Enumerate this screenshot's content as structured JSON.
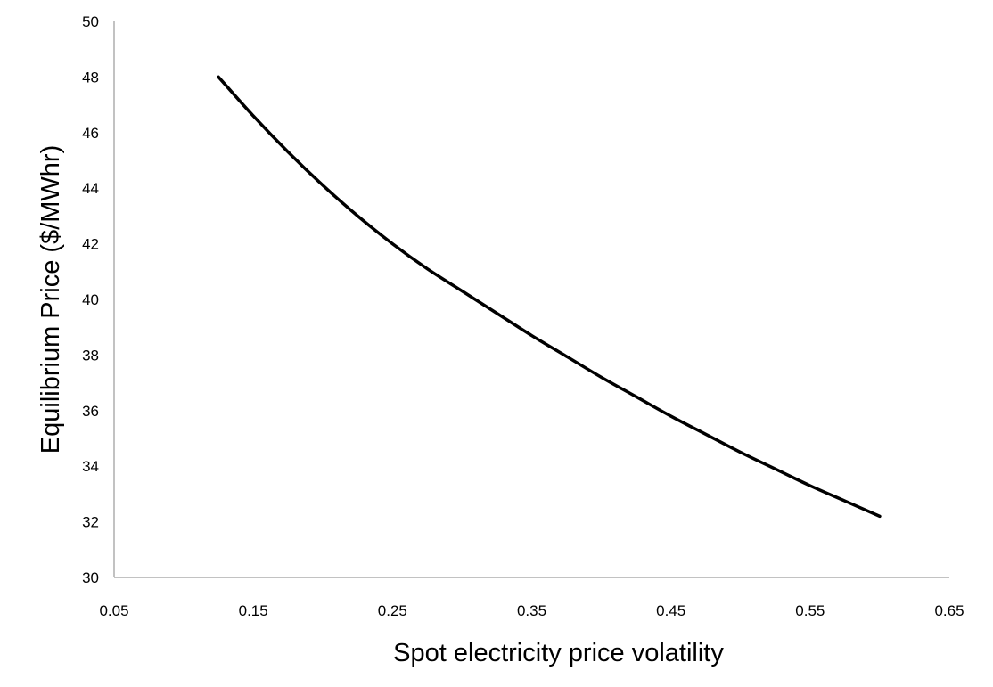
{
  "chart_data": {
    "type": "line",
    "title": "",
    "xlabel": "Spot electricity price volatility",
    "ylabel": "Equilibrium Price ($/MWhr)",
    "xlim": [
      0.05,
      0.65
    ],
    "ylim": [
      30,
      50
    ],
    "x_ticks": [
      "0.05",
      "0.15",
      "0.25",
      "0.35",
      "0.45",
      "0.55",
      "0.65"
    ],
    "y_ticks": [
      "30",
      "32",
      "34",
      "36",
      "38",
      "40",
      "42",
      "44",
      "46",
      "48",
      "50"
    ],
    "grid": false,
    "legend": "none",
    "series": [
      {
        "color": "#000000",
        "x": [
          0.125,
          0.15,
          0.175,
          0.2,
          0.225,
          0.25,
          0.275,
          0.3,
          0.325,
          0.35,
          0.375,
          0.4,
          0.425,
          0.45,
          0.475,
          0.5,
          0.525,
          0.55,
          0.575,
          0.6
        ],
        "y": [
          48.0,
          46.6,
          45.3,
          44.1,
          43.0,
          42.0,
          41.1,
          40.3,
          39.5,
          38.7,
          37.95,
          37.2,
          36.5,
          35.8,
          35.15,
          34.5,
          33.9,
          33.3,
          32.75,
          32.2
        ]
      }
    ]
  }
}
